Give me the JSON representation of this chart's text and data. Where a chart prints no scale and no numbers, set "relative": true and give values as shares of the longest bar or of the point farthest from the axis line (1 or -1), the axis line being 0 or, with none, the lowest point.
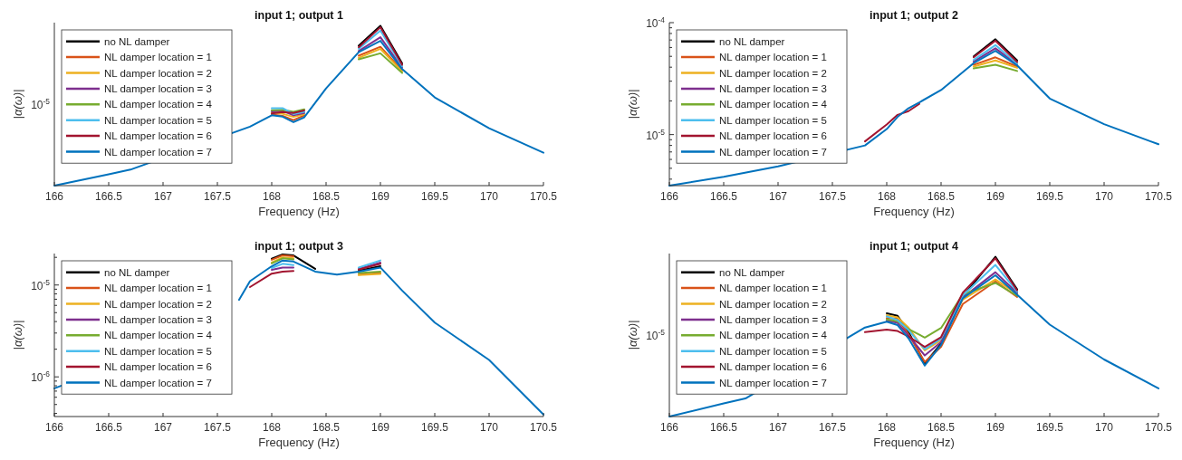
{
  "chart_data": [
    {
      "type": "line",
      "title": "input 1; output 1",
      "xlabel": "Frequency (Hz)",
      "ylabel": "|α(ω)|",
      "relative": true,
      "grid": false,
      "legend": "top left",
      "line_style": "solid",
      "annotations": [
        "10$^{-5}$"
      ],
      "xlim": [
        166,
        170.5
      ],
      "xticks": [
        166,
        166.5,
        167,
        167.5,
        168,
        168.5,
        169,
        169.5,
        170,
        170.5
      ],
      "x": [
        166,
        166.5,
        166.7,
        167.8,
        168,
        168.1,
        168.2,
        168.3,
        168.5,
        168.8,
        169,
        169.2,
        169.5,
        170,
        170.5
      ],
      "series": [
        {
          "name": "no NL damper",
          "color": "#000000",
          "values": [
            null,
            null,
            null,
            null,
            null,
            null,
            null,
            null,
            null,
            0.875,
            1.0,
            0.765,
            null,
            null,
            null
          ]
        },
        {
          "name": "NL damper location = 1",
          "color": "#d95319",
          "values": [
            null,
            null,
            null,
            null,
            0.445,
            0.436,
            0.41,
            0.44,
            null,
            0.813,
            0.869,
            0.722,
            null,
            null,
            null
          ]
        },
        {
          "name": "NL damper location = 2",
          "color": "#edb120",
          "values": [
            null,
            null,
            null,
            null,
            0.458,
            0.45,
            0.43,
            0.448,
            null,
            0.8,
            0.856,
            0.715,
            null,
            null,
            null
          ]
        },
        {
          "name": "NL damper location = 3",
          "color": "#7e2f8e",
          "values": [
            null,
            null,
            null,
            null,
            0.465,
            0.468,
            0.44,
            0.455,
            null,
            0.842,
            0.929,
            0.738,
            null,
            null,
            null
          ]
        },
        {
          "name": "NL damper location = 4",
          "color": "#77ac30",
          "values": [
            null,
            null,
            null,
            null,
            0.472,
            0.475,
            0.462,
            0.478,
            null,
            0.79,
            0.828,
            0.705,
            null,
            null,
            null
          ]
        },
        {
          "name": "NL damper location = 5",
          "color": "#4dbeee",
          "values": [
            null,
            null,
            null,
            null,
            0.485,
            0.485,
            0.448,
            0.462,
            null,
            0.856,
            0.971,
            0.747,
            null,
            null,
            null
          ]
        },
        {
          "name": "NL damper location = 6",
          "color": "#a2142f",
          "values": [
            null,
            null,
            null,
            null,
            0.452,
            0.46,
            0.455,
            0.47,
            null,
            0.866,
            0.991,
            0.756,
            null,
            null,
            null
          ]
        },
        {
          "name": "NL damper location = 7",
          "color": "#0072bd",
          "values": [
            0,
            0.071,
            0.1,
            0.369,
            0.44,
            0.432,
            0.397,
            0.428,
            0.608,
            0.835,
            0.906,
            0.729,
            0.552,
            0.359,
            0.206
          ]
        }
      ]
    },
    {
      "type": "line",
      "title": "input 1; output 2",
      "xlabel": "Frequency (Hz)",
      "ylabel": "|α(ω)|",
      "log": "y",
      "grid": false,
      "legend": "top left",
      "line_style": "solid",
      "xlim": [
        166,
        170.5
      ],
      "xticks": [
        166,
        166.5,
        167,
        167.5,
        168,
        168.5,
        169,
        169.5,
        170,
        170.5
      ],
      "ylim": [
        3.5e-06,
        0.0001
      ],
      "yticks": [
        {
          "value": 4e-06,
          "label": null
        },
        {
          "value": 5e-06,
          "label": null
        },
        {
          "value": 6e-06,
          "label": null
        },
        {
          "value": 7e-06,
          "label": null
        },
        {
          "value": 8e-06,
          "label": null
        },
        {
          "value": 9e-06,
          "label": null
        },
        {
          "value": 1e-05,
          "label": "10$^{-5}$"
        },
        {
          "value": 2e-05,
          "label": null
        },
        {
          "value": 3e-05,
          "label": null
        },
        {
          "value": 4e-05,
          "label": null
        },
        {
          "value": 5e-05,
          "label": null
        },
        {
          "value": 6e-05,
          "label": null
        },
        {
          "value": 7e-05,
          "label": null
        },
        {
          "value": 8e-05,
          "label": null
        },
        {
          "value": 9e-05,
          "label": null
        },
        {
          "value": 0.0001,
          "label": "10$^{-4}$"
        }
      ],
      "x": [
        166,
        166.5,
        167,
        167.8,
        168,
        168.1,
        168.2,
        168.3,
        168.5,
        168.8,
        169,
        169.2,
        169.5,
        170,
        170.5
      ],
      "series": [
        {
          "name": "no NL damper",
          "color": "#000000",
          "values": [
            null,
            null,
            null,
            null,
            null,
            null,
            null,
            null,
            null,
            5e-05,
            7.1e-05,
            4.6e-05,
            null,
            null,
            null
          ]
        },
        {
          "name": "NL damper location = 1",
          "color": "#d95319",
          "values": [
            null,
            null,
            null,
            null,
            null,
            null,
            null,
            null,
            null,
            4.2e-05,
            4.9e-05,
            4.05e-05,
            null,
            null,
            null
          ]
        },
        {
          "name": "NL damper location = 2",
          "color": "#edb120",
          "values": [
            null,
            null,
            null,
            null,
            null,
            null,
            null,
            null,
            null,
            4.05e-05,
            4.6e-05,
            3.95e-05,
            null,
            null,
            null
          ]
        },
        {
          "name": "NL damper location = 3",
          "color": "#7e2f8e",
          "values": [
            null,
            null,
            null,
            null,
            null,
            null,
            null,
            null,
            null,
            4.5e-05,
            5.9e-05,
            4.25e-05,
            null,
            null,
            null
          ]
        },
        {
          "name": "NL damper location = 4",
          "color": "#77ac30",
          "values": [
            null,
            null,
            null,
            null,
            null,
            null,
            null,
            null,
            null,
            3.9e-05,
            4.2e-05,
            3.7e-05,
            null,
            null,
            null
          ]
        },
        {
          "name": "NL damper location = 5",
          "color": "#4dbeee",
          "values": [
            null,
            null,
            null,
            null,
            null,
            null,
            null,
            null,
            null,
            4.65e-05,
            6.3e-05,
            4.3e-05,
            null,
            null,
            null
          ]
        },
        {
          "name": "NL damper location = 6",
          "color": "#a2142f",
          "values": [
            null,
            null,
            null,
            8.7e-06,
            1.23e-05,
            1.5e-05,
            1.62e-05,
            1.88e-05,
            null,
            4.9e-05,
            6.9e-05,
            4.45e-05,
            null,
            null,
            null
          ]
        },
        {
          "name": "NL damper location = 7",
          "color": "#0072bd",
          "values": [
            3.5e-06,
            4.2e-06,
            5.2e-06,
            8e-06,
            1.12e-05,
            1.44e-05,
            1.72e-05,
            1.94e-05,
            2.5e-05,
            4.35e-05,
            5.6e-05,
            4.15e-05,
            2.1e-05,
            1.24e-05,
            8.2e-06
          ]
        }
      ]
    },
    {
      "type": "line",
      "title": "input 1; output 3",
      "xlabel": "Frequency (Hz)",
      "ylabel": "|α(ω)|",
      "log": "y",
      "grid": false,
      "legend": "top left",
      "line_style": "solid",
      "xlim": [
        166,
        170.5
      ],
      "xticks": [
        166,
        166.5,
        167,
        167.5,
        168,
        168.5,
        169,
        169.5,
        170,
        170.5
      ],
      "ylim": [
        3.7e-07,
        2.2e-05
      ],
      "yticks": [
        {
          "value": 4e-07,
          "label": null
        },
        {
          "value": 5e-07,
          "label": null
        },
        {
          "value": 6e-07,
          "label": null
        },
        {
          "value": 7e-07,
          "label": null
        },
        {
          "value": 8e-07,
          "label": null
        },
        {
          "value": 9e-07,
          "label": null
        },
        {
          "value": 1e-06,
          "label": "10$^{-6}$"
        },
        {
          "value": 2e-06,
          "label": null
        },
        {
          "value": 3e-06,
          "label": null
        },
        {
          "value": 4e-06,
          "label": null
        },
        {
          "value": 5e-06,
          "label": null
        },
        {
          "value": 6e-06,
          "label": null
        },
        {
          "value": 7e-06,
          "label": null
        },
        {
          "value": 8e-06,
          "label": null
        },
        {
          "value": 9e-06,
          "label": null
        },
        {
          "value": 1e-05,
          "label": "10$^{-5}$"
        },
        {
          "value": 2e-05,
          "label": null
        }
      ],
      "x": [
        166,
        166.1,
        167,
        167.7,
        167.8,
        168,
        168.1,
        168.2,
        168.4,
        168.6,
        168.8,
        169,
        169.2,
        169.5,
        170,
        170.5
      ],
      "series": [
        {
          "name": "no NL damper",
          "color": "#000000",
          "values": [
            null,
            null,
            null,
            null,
            null,
            1.93e-05,
            2.15e-05,
            2.1e-05,
            1.5e-05,
            null,
            1.43e-05,
            1.6e-05,
            null,
            null,
            null,
            null
          ]
        },
        {
          "name": "NL damper location = 1",
          "color": "#d95319",
          "values": [
            null,
            null,
            null,
            null,
            null,
            1.88e-05,
            2.1e-05,
            2.05e-05,
            null,
            null,
            1.3e-05,
            1.35e-05,
            null,
            null,
            null,
            null
          ]
        },
        {
          "name": "NL damper location = 2",
          "color": "#edb120",
          "values": [
            null,
            null,
            null,
            null,
            null,
            1.76e-05,
            2e-05,
            1.95e-05,
            null,
            null,
            1.28e-05,
            1.32e-05,
            null,
            null,
            null,
            null
          ]
        },
        {
          "name": "NL damper location = 3",
          "color": "#7e2f8e",
          "values": [
            null,
            null,
            null,
            null,
            null,
            1.46e-05,
            1.55e-05,
            1.55e-05,
            null,
            null,
            1.5e-05,
            1.75e-05,
            null,
            null,
            null,
            null
          ]
        },
        {
          "name": "NL damper location = 4",
          "color": "#77ac30",
          "values": [
            null,
            null,
            null,
            null,
            null,
            1.72e-05,
            1.95e-05,
            1.9e-05,
            null,
            null,
            1.35e-05,
            1.4e-05,
            null,
            null,
            null,
            null
          ]
        },
        {
          "name": "NL damper location = 5",
          "color": "#4dbeee",
          "values": [
            null,
            null,
            null,
            null,
            null,
            1.53e-05,
            1.7e-05,
            1.65e-05,
            null,
            null,
            1.55e-05,
            1.85e-05,
            null,
            null,
            null,
            null
          ]
        },
        {
          "name": "NL damper location = 6",
          "color": "#a2142f",
          "values": [
            null,
            null,
            null,
            null,
            9.5e-06,
            1.33e-05,
            1.4e-05,
            1.42e-05,
            null,
            null,
            1.47e-05,
            1.7e-05,
            null,
            null,
            null,
            null
          ]
        },
        {
          "name": "NL damper location = 7",
          "color": "#0072bd",
          "values": [
            7.5e-07,
            8.3e-07,
            null,
            6.9e-06,
            1.1e-05,
            1.6e-05,
            1.85e-05,
            1.8e-05,
            1.4e-05,
            1.3e-05,
            1.4e-05,
            1.55e-05,
            8.7e-06,
            3.9e-06,
            1.53e-06,
            3.9e-07
          ]
        }
      ]
    },
    {
      "type": "line",
      "title": "input 1; output 4",
      "xlabel": "Frequency (Hz)",
      "ylabel": "|α(ω)|",
      "relative": true,
      "grid": false,
      "legend": "top left",
      "line_style": "solid",
      "annotations": [
        "10$^{-5}$"
      ],
      "xlim": [
        166,
        170.5
      ],
      "xticks": [
        166,
        166.5,
        167,
        167.5,
        168,
        168.5,
        169,
        169.5,
        170,
        170.5
      ],
      "x": [
        166,
        166.5,
        166.7,
        167.8,
        168,
        168.1,
        168.2,
        168.35,
        168.5,
        168.7,
        169,
        169.2,
        169.5,
        170,
        170.5
      ],
      "series": [
        {
          "name": "no NL damper",
          "color": "#000000",
          "values": [
            null,
            null,
            null,
            null,
            0.646,
            0.63,
            0.53,
            0.333,
            0.455,
            0.752,
            1.0,
            0.796,
            null,
            null,
            null
          ]
        },
        {
          "name": "NL damper location = 1",
          "color": "#d95319",
          "values": [
            null,
            null,
            null,
            null,
            0.616,
            0.612,
            0.515,
            0.342,
            0.436,
            0.704,
            0.846,
            0.748,
            null,
            null,
            null
          ]
        },
        {
          "name": "NL damper location = 2",
          "color": "#edb120",
          "values": [
            null,
            null,
            null,
            null,
            0.634,
            0.62,
            0.557,
            0.414,
            0.478,
            0.732,
            0.858,
            0.767,
            null,
            null,
            null
          ]
        },
        {
          "name": "NL damper location = 3",
          "color": "#7e2f8e",
          "values": [
            null,
            null,
            null,
            null,
            0.6,
            0.586,
            0.508,
            0.382,
            0.466,
            0.745,
            0.903,
            0.774,
            null,
            null,
            null
          ]
        },
        {
          "name": "NL damper location = 4",
          "color": "#77ac30",
          "values": [
            null,
            null,
            null,
            null,
            0.608,
            0.596,
            0.548,
            0.494,
            0.554,
            0.765,
            0.836,
            0.755,
            null,
            null,
            null
          ]
        },
        {
          "name": "NL damper location = 5",
          "color": "#4dbeee",
          "values": [
            null,
            null,
            null,
            null,
            0.626,
            0.604,
            0.541,
            0.421,
            0.488,
            0.758,
            0.949,
            0.781,
            null,
            null,
            null
          ]
        },
        {
          "name": "NL damper location = 6",
          "color": "#a2142f",
          "values": [
            null,
            null,
            null,
            0.528,
            0.544,
            0.535,
            0.501,
            0.436,
            0.497,
            0.775,
            0.99,
            0.789,
            null,
            null,
            null
          ]
        },
        {
          "name": "NL damper location = 7",
          "color": "#0072bd",
          "values": [
            0,
            0.082,
            0.113,
            0.557,
            0.594,
            0.572,
            0.49,
            0.319,
            0.448,
            0.74,
            0.884,
            0.762,
            0.575,
            0.357,
            0.176
          ]
        }
      ]
    }
  ]
}
